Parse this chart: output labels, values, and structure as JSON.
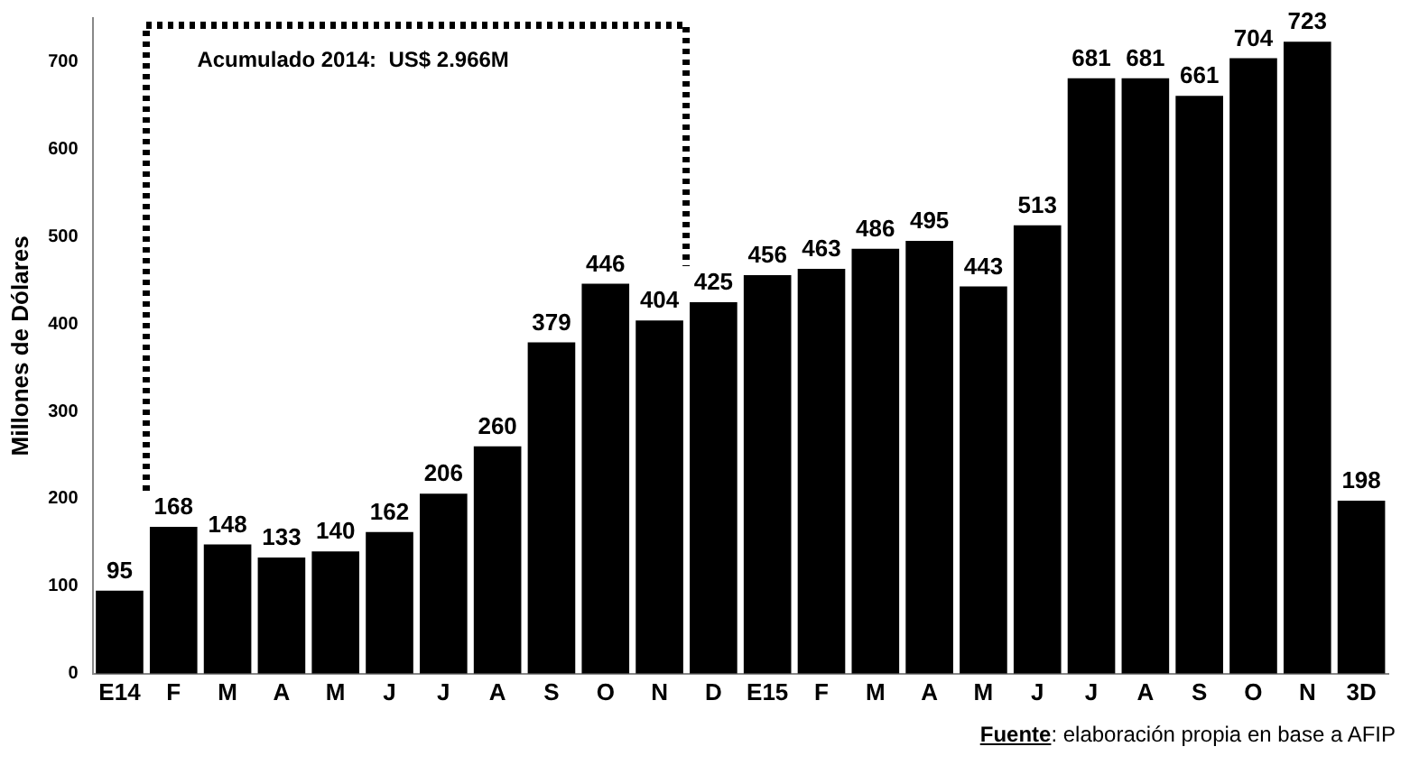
{
  "chart_data": {
    "type": "bar",
    "ylabel": "Millones de Dólares",
    "categories": [
      "E14",
      "F",
      "M",
      "A",
      "M",
      "J",
      "J",
      "A",
      "S",
      "O",
      "N",
      "D",
      "E15",
      "F",
      "M",
      "A",
      "M",
      "J",
      "J",
      "A",
      "S",
      "O",
      "N",
      "3D"
    ],
    "values": [
      95,
      168,
      148,
      133,
      140,
      162,
      206,
      260,
      379,
      446,
      404,
      425,
      456,
      463,
      486,
      495,
      443,
      513,
      681,
      681,
      661,
      704,
      723,
      198
    ],
    "color": "#000000",
    "ylim": [
      0,
      750
    ],
    "yticks": [
      0,
      100,
      200,
      300,
      400,
      500,
      600,
      700
    ],
    "grid": false,
    "legend": false,
    "data_labels": true,
    "annotations": [
      "Acumulado 2014:  US$ 2.966M",
      "Fuente: elaboración propia en base a AFIP"
    ]
  }
}
